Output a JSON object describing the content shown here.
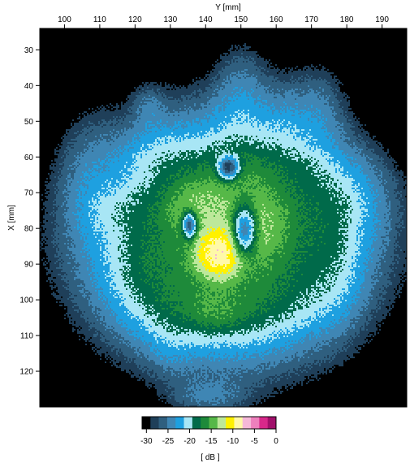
{
  "chart_data": {
    "type": "heatmap",
    "title": "",
    "xlabel": "Y [mm]",
    "ylabel": "X [mm]",
    "x_ticks": [
      100,
      110,
      120,
      130,
      140,
      150,
      160,
      170,
      180,
      190
    ],
    "y_ticks": [
      30,
      40,
      50,
      60,
      70,
      80,
      90,
      100,
      110,
      120
    ],
    "xlim": [
      93,
      197
    ],
    "ylim": [
      130,
      24
    ],
    "grid": false,
    "colorbar": {
      "label": "[ dB ]",
      "range": [
        -31,
        0
      ],
      "ticks": [
        -30,
        -25,
        -20,
        -15,
        -10,
        -5,
        0
      ],
      "colors": [
        "#000000",
        "#1f3f59",
        "#2f5f7f",
        "#3f86b4",
        "#1ea0e0",
        "#a8e6f5",
        "#006a4a",
        "#1e8a3a",
        "#56b848",
        "#bde89a",
        "#fff100",
        "#fff9a8",
        "#f5b8d8",
        "#ee80bc",
        "#d8288a",
        "#a0106a"
      ]
    },
    "blobs": [
      {
        "y": 146,
        "x": 83,
        "sy": 21,
        "sx": 18,
        "peak": -16
      },
      {
        "y": 144,
        "x": 87,
        "sy": 4,
        "sx": 4,
        "peak": -9
      },
      {
        "y": 153,
        "x": 79,
        "sy": 6,
        "sx": 7,
        "peak": -15
      },
      {
        "y": 138,
        "x": 74,
        "sy": 6,
        "sx": 5,
        "peak": -16
      },
      {
        "y": 149,
        "x": 64,
        "sy": 7,
        "sx": 5,
        "peak": -21
      },
      {
        "y": 128,
        "x": 60,
        "sy": 7,
        "sx": 5,
        "peak": -25
      },
      {
        "y": 150,
        "x": 46,
        "sy": 5,
        "sx": 11,
        "peak": -25
      },
      {
        "y": 162,
        "x": 58,
        "sy": 5,
        "sx": 11,
        "peak": -25
      },
      {
        "y": 172,
        "x": 48,
        "sy": 5,
        "sx": 9,
        "peak": -26
      },
      {
        "y": 176,
        "x": 72,
        "sy": 9,
        "sx": 8,
        "peak": -23
      },
      {
        "y": 176,
        "x": 90,
        "sy": 5,
        "sx": 10,
        "peak": -24
      },
      {
        "y": 107,
        "x": 66,
        "sy": 6,
        "sx": 12,
        "peak": -27
      },
      {
        "y": 115,
        "x": 75,
        "sy": 6,
        "sx": 4,
        "peak": -26
      },
      {
        "y": 124,
        "x": 92,
        "sy": 7,
        "sx": 9,
        "peak": -24
      },
      {
        "y": 135,
        "x": 100,
        "sy": 9,
        "sx": 6,
        "peak": -24
      },
      {
        "y": 143,
        "x": 103,
        "sy": 6,
        "sx": 4,
        "peak": -19
      },
      {
        "y": 158,
        "x": 100,
        "sy": 8,
        "sx": 6,
        "peak": -24
      },
      {
        "y": 130,
        "x": 111,
        "sy": 4,
        "sx": 6,
        "peak": -27
      },
      {
        "y": 141,
        "x": 127,
        "sy": 7,
        "sx": 3,
        "peak": -26
      },
      {
        "y": 124,
        "x": 46,
        "sy": 3,
        "sx": 4,
        "peak": -27
      },
      {
        "y": 170,
        "x": 63,
        "sy": 3,
        "sx": 3,
        "peak": -27
      }
    ],
    "exclusions": [
      {
        "y": 146.5,
        "x": 63,
        "sy": 2,
        "sx": 2.2
      },
      {
        "y": 151,
        "x": 80.5,
        "sy": 2.4,
        "sx": 5
      },
      {
        "y": 135.5,
        "x": 79,
        "sy": 1.4,
        "sx": 2.5
      }
    ]
  }
}
